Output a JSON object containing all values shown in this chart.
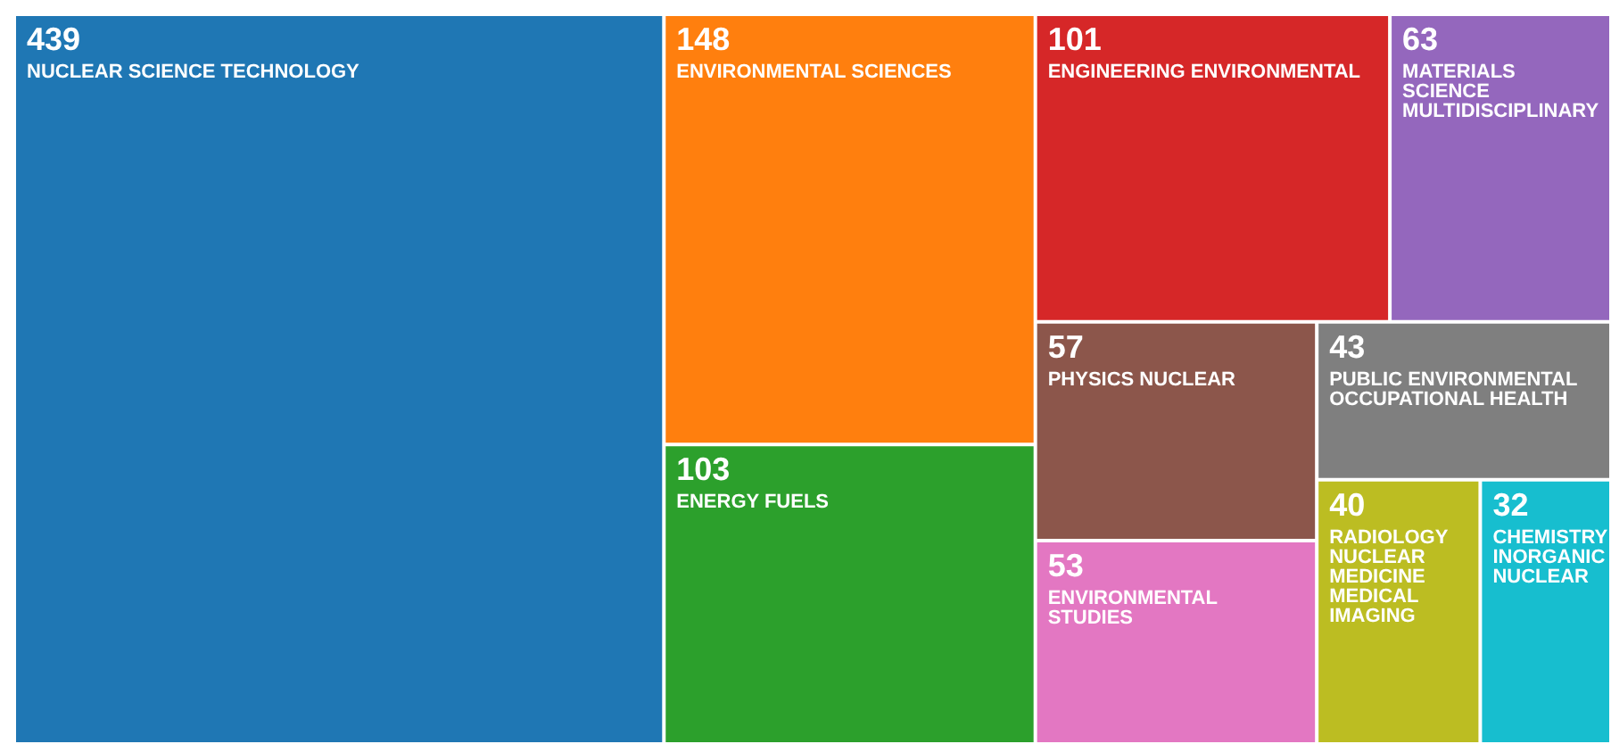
{
  "chart_data": {
    "type": "other",
    "categories": [
      "NUCLEAR SCIENCE TECHNOLOGY",
      "ENVIRONMENTAL SCIENCES",
      "ENERGY FUELS",
      "ENGINEERING ENVIRONMENTAL",
      "MATERIALS SCIENCE MULTIDISCIPLINARY",
      "PHYSICS NUCLEAR",
      "ENVIRONMENTAL STUDIES",
      "PUBLIC ENVIRONMENTAL OCCUPATIONAL HEALTH",
      "RADIOLOGY NUCLEAR MEDICINE MEDICAL IMAGING",
      "CHEMISTRY INORGANIC NUCLEAR"
    ],
    "values": [
      439,
      148,
      103,
      101,
      63,
      57,
      53,
      43,
      40,
      32
    ],
    "colors": [
      "#1f77b4",
      "#ff7f0e",
      "#2ca02c",
      "#d62728",
      "#9467bd",
      "#8c564b",
      "#e377c2",
      "#7f7f7f",
      "#bcbd22",
      "#17becf"
    ],
    "data_labels": true
  }
}
